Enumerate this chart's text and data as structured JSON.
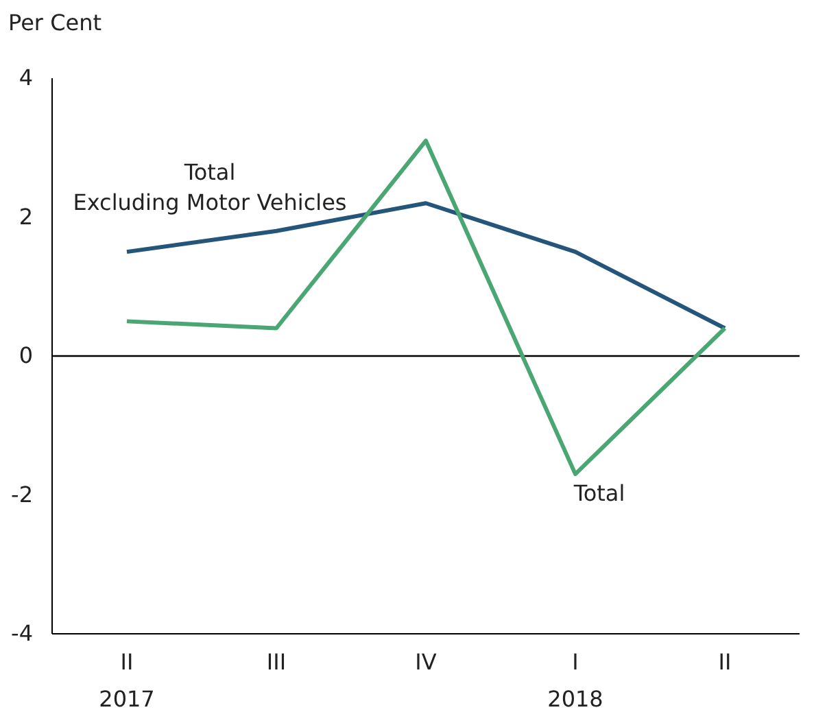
{
  "chart_data": {
    "type": "line",
    "ylabel": "Per Cent",
    "categories": [
      "II\n2017",
      "III",
      "IV",
      "I\n2018",
      "II"
    ],
    "series": [
      {
        "color": "#24557a",
        "values": [
          1.5,
          1.8,
          2.2,
          1.5,
          0.4
        ]
      },
      {
        "color": "#4aa672",
        "values": [
          0.5,
          0.4,
          3.1,
          -1.7,
          0.4
        ]
      }
    ],
    "ylim": [
      -4,
      4
    ],
    "yticks": [
      -4,
      -2,
      0,
      2,
      4
    ],
    "ref_lines": [
      {
        "axis": "y",
        "value": 0,
        "color": "#000000"
      }
    ],
    "annotations": [
      "Total\nExcluding Motor Vehicles",
      "Total"
    ],
    "grid": false,
    "marker": "none",
    "line_style": "solid"
  }
}
